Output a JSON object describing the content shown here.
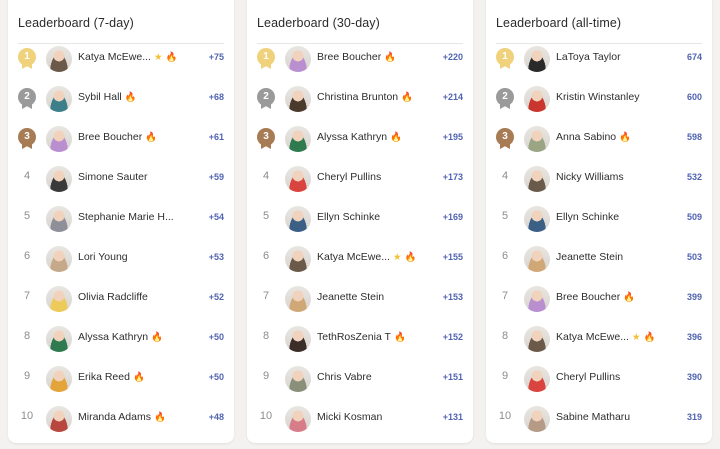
{
  "colors": {
    "background": "#f3f2f0",
    "card": "#ffffff",
    "score": "#5063b0",
    "gold": "#f0d27d",
    "silver": "#9a9a9a",
    "bronze": "#a77c55",
    "star": "#f2c233",
    "fire": "#f26b1d"
  },
  "icons": {
    "star": "★",
    "fire": "🔥"
  },
  "boards": [
    {
      "title": "Leaderboard (7-day)",
      "rows": [
        {
          "rank": "1",
          "name": "Katya McEwe...",
          "star": true,
          "fire": true,
          "score": "+75",
          "avatar_color": "#6b5a4a"
        },
        {
          "rank": "2",
          "name": "Sybil Hall",
          "star": false,
          "fire": true,
          "score": "+68",
          "avatar_color": "#3c7f8a"
        },
        {
          "rank": "3",
          "name": "Bree Boucher",
          "star": false,
          "fire": true,
          "score": "+61",
          "avatar_color": "#b98fd0"
        },
        {
          "rank": "4",
          "name": "Simone Sauter",
          "star": false,
          "fire": false,
          "score": "+59",
          "avatar_color": "#3a3a3a"
        },
        {
          "rank": "5",
          "name": "Stephanie Marie H...",
          "star": false,
          "fire": false,
          "score": "+54",
          "avatar_color": "#8e8f98"
        },
        {
          "rank": "6",
          "name": "Lori Young",
          "star": false,
          "fire": false,
          "score": "+53",
          "avatar_color": "#c6a98a"
        },
        {
          "rank": "7",
          "name": "Olivia Radcliffe",
          "star": false,
          "fire": false,
          "score": "+52",
          "avatar_color": "#eccb5a"
        },
        {
          "rank": "8",
          "name": "Alyssa Kathryn",
          "star": false,
          "fire": true,
          "score": "+50",
          "avatar_color": "#2f7a4e"
        },
        {
          "rank": "9",
          "name": "Erika Reed",
          "star": false,
          "fire": true,
          "score": "+50",
          "avatar_color": "#e3a43a"
        },
        {
          "rank": "10",
          "name": "Miranda Adams",
          "star": false,
          "fire": true,
          "score": "+48",
          "avatar_color": "#b8473f"
        }
      ]
    },
    {
      "title": "Leaderboard (30-day)",
      "rows": [
        {
          "rank": "1",
          "name": "Bree Boucher",
          "star": false,
          "fire": true,
          "score": "+220",
          "avatar_color": "#b98fd0"
        },
        {
          "rank": "2",
          "name": "Christina Brunton",
          "star": false,
          "fire": true,
          "score": "+214",
          "avatar_color": "#4a3a2c"
        },
        {
          "rank": "3",
          "name": "Alyssa Kathryn",
          "star": false,
          "fire": true,
          "score": "+195",
          "avatar_color": "#2f7a4e"
        },
        {
          "rank": "4",
          "name": "Cheryl Pullins",
          "star": false,
          "fire": false,
          "score": "+173",
          "avatar_color": "#d9453e"
        },
        {
          "rank": "5",
          "name": "Ellyn Schinke",
          "star": false,
          "fire": false,
          "score": "+169",
          "avatar_color": "#3c5f86"
        },
        {
          "rank": "6",
          "name": "Katya McEwe...",
          "star": true,
          "fire": true,
          "score": "+155",
          "avatar_color": "#6b5a4a"
        },
        {
          "rank": "7",
          "name": "Jeanette Stein",
          "star": false,
          "fire": false,
          "score": "+153",
          "avatar_color": "#d0a878"
        },
        {
          "rank": "8",
          "name": "TethRosZenia T",
          "star": false,
          "fire": true,
          "score": "+152",
          "avatar_color": "#3b2e28"
        },
        {
          "rank": "9",
          "name": "Chris Vabre",
          "star": false,
          "fire": false,
          "score": "+151",
          "avatar_color": "#8a8f7a"
        },
        {
          "rank": "10",
          "name": "Micki Kosman",
          "star": false,
          "fire": false,
          "score": "+131",
          "avatar_color": "#d77d8a"
        }
      ]
    },
    {
      "title": "Leaderboard (all-time)",
      "rows": [
        {
          "rank": "1",
          "name": "LaToya Taylor",
          "star": false,
          "fire": false,
          "score": "674",
          "avatar_color": "#2a2a2a"
        },
        {
          "rank": "2",
          "name": "Kristin Winstanley",
          "star": false,
          "fire": false,
          "score": "600",
          "avatar_color": "#c8362e"
        },
        {
          "rank": "3",
          "name": "Anna Sabino",
          "star": false,
          "fire": true,
          "score": "598",
          "avatar_color": "#9aa583"
        },
        {
          "rank": "4",
          "name": "Nicky Williams",
          "star": false,
          "fire": false,
          "score": "532",
          "avatar_color": "#6a5a4c"
        },
        {
          "rank": "5",
          "name": "Ellyn Schinke",
          "star": false,
          "fire": false,
          "score": "509",
          "avatar_color": "#3c5f86"
        },
        {
          "rank": "6",
          "name": "Jeanette Stein",
          "star": false,
          "fire": false,
          "score": "503",
          "avatar_color": "#d0a878"
        },
        {
          "rank": "7",
          "name": "Bree Boucher",
          "star": false,
          "fire": true,
          "score": "399",
          "avatar_color": "#b98fd0"
        },
        {
          "rank": "8",
          "name": "Katya McEwe...",
          "star": true,
          "fire": true,
          "score": "396",
          "avatar_color": "#6b5a4a"
        },
        {
          "rank": "9",
          "name": "Cheryl Pullins",
          "star": false,
          "fire": false,
          "score": "390",
          "avatar_color": "#d9453e"
        },
        {
          "rank": "10",
          "name": "Sabine Matharu",
          "star": false,
          "fire": false,
          "score": "319",
          "avatar_color": "#b59a86"
        }
      ]
    }
  ]
}
